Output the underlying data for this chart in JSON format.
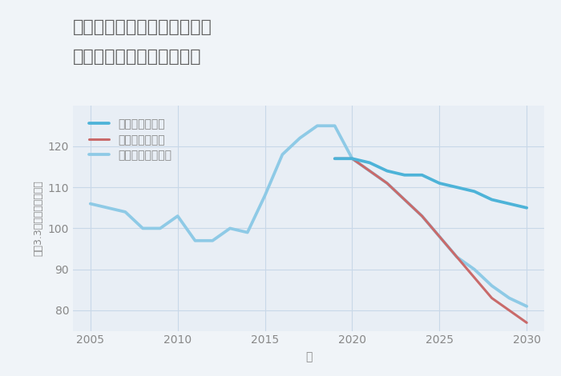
{
  "title_line1": "愛知県稲沢市祖父江町四貫の",
  "title_line2": "中古マンションの価格推移",
  "xlabel": "年",
  "ylabel": "坪（3.3㎡）単価（万円）",
  "background_color": "#f0f4f8",
  "plot_bg_color": "#e8eef5",
  "grid_color": "#c8d8e8",
  "ylim": [
    75,
    130
  ],
  "yticks": [
    80,
    90,
    100,
    110,
    120
  ],
  "good_scenario": {
    "label": "グッドシナリオ",
    "color": "#4db3d8",
    "x": [
      2019,
      2020,
      2021,
      2022,
      2023,
      2024,
      2025,
      2026,
      2027,
      2028,
      2029,
      2030
    ],
    "y": [
      117,
      117,
      116,
      114,
      113,
      113,
      111,
      110,
      109,
      107,
      106,
      105
    ]
  },
  "bad_scenario": {
    "label": "バッドシナリオ",
    "color": "#c96a6a",
    "x": [
      2019,
      2020,
      2021,
      2022,
      2023,
      2024,
      2025,
      2026,
      2027,
      2028,
      2029,
      2030
    ],
    "y": [
      117,
      117,
      114,
      111,
      107,
      103,
      98,
      93,
      88,
      83,
      80,
      77
    ]
  },
  "normal_scenario": {
    "label": "ノーマルシナリオ",
    "color": "#8ecae6",
    "x": [
      2005,
      2006,
      2007,
      2008,
      2009,
      2010,
      2011,
      2012,
      2013,
      2014,
      2015,
      2016,
      2017,
      2018,
      2019,
      2020,
      2021,
      2022,
      2023,
      2024,
      2025,
      2026,
      2027,
      2028,
      2029,
      2030
    ],
    "y": [
      106,
      105,
      104,
      100,
      100,
      103,
      97,
      97,
      100,
      99,
      108,
      118,
      122,
      125,
      125,
      117,
      114,
      111,
      107,
      103,
      98,
      93,
      90,
      86,
      83,
      81
    ]
  },
  "xlim": [
    2004,
    2031
  ],
  "xticks": [
    2005,
    2010,
    2015,
    2020,
    2025,
    2030
  ],
  "title_color": "#606060",
  "axis_color": "#888888",
  "tick_color": "#888888",
  "linewidth": 2.2,
  "title_fontsize": 16,
  "legend_fontsize": 10,
  "axis_label_fontsize": 10,
  "tick_fontsize": 10
}
